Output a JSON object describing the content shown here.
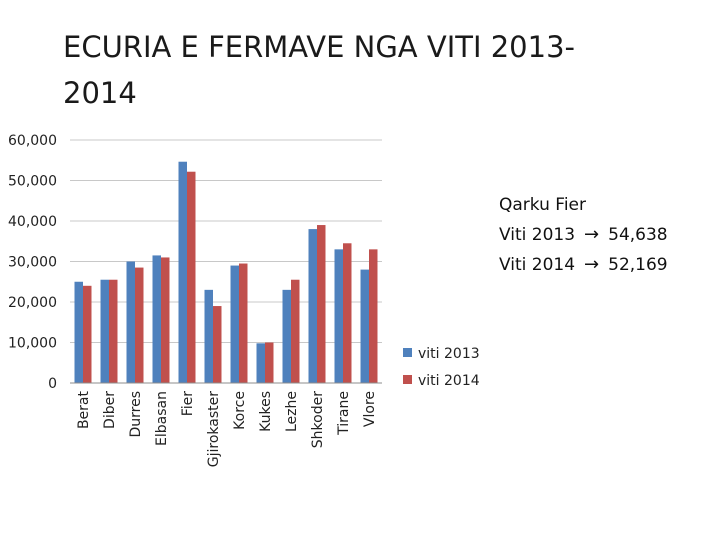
{
  "slide": {
    "title": "ECURIA E FERMAVE NGA VITI 2013-2014"
  },
  "note": {
    "heading": "Qarku Fier",
    "lines": [
      {
        "label": "Viti 2013",
        "arrow": "→",
        "value": "54,638"
      },
      {
        "label": "Viti 2014",
        "arrow": "→",
        "value": "52,169"
      }
    ]
  },
  "chart_data": {
    "type": "bar",
    "categories": [
      "Berat",
      "Diber",
      "Durres",
      "Elbasan",
      "Fier",
      "Gjirokaster",
      "Korce",
      "Kukes",
      "Lezhe",
      "Shkoder",
      "Tirane",
      "Vlore"
    ],
    "series": [
      {
        "name": "viti 2013",
        "color": "#4f81bd",
        "values": [
          25000,
          25500,
          30000,
          31500,
          54638,
          23000,
          29000,
          9800,
          23000,
          38000,
          33000,
          28000
        ]
      },
      {
        "name": "viti 2014",
        "color": "#c0504d",
        "values": [
          24000,
          25500,
          28500,
          31000,
          52169,
          19000,
          29500,
          10000,
          25500,
          39000,
          34500,
          33000
        ]
      }
    ],
    "ylim": [
      0,
      60000
    ],
    "yticks": [
      "0",
      "10,000",
      "20,000",
      "30,000",
      "40,000",
      "50,000",
      "60,000"
    ],
    "ytick_values": [
      0,
      10000,
      20000,
      30000,
      40000,
      50000,
      60000
    ],
    "gridlines": true,
    "legend_position": "right"
  }
}
